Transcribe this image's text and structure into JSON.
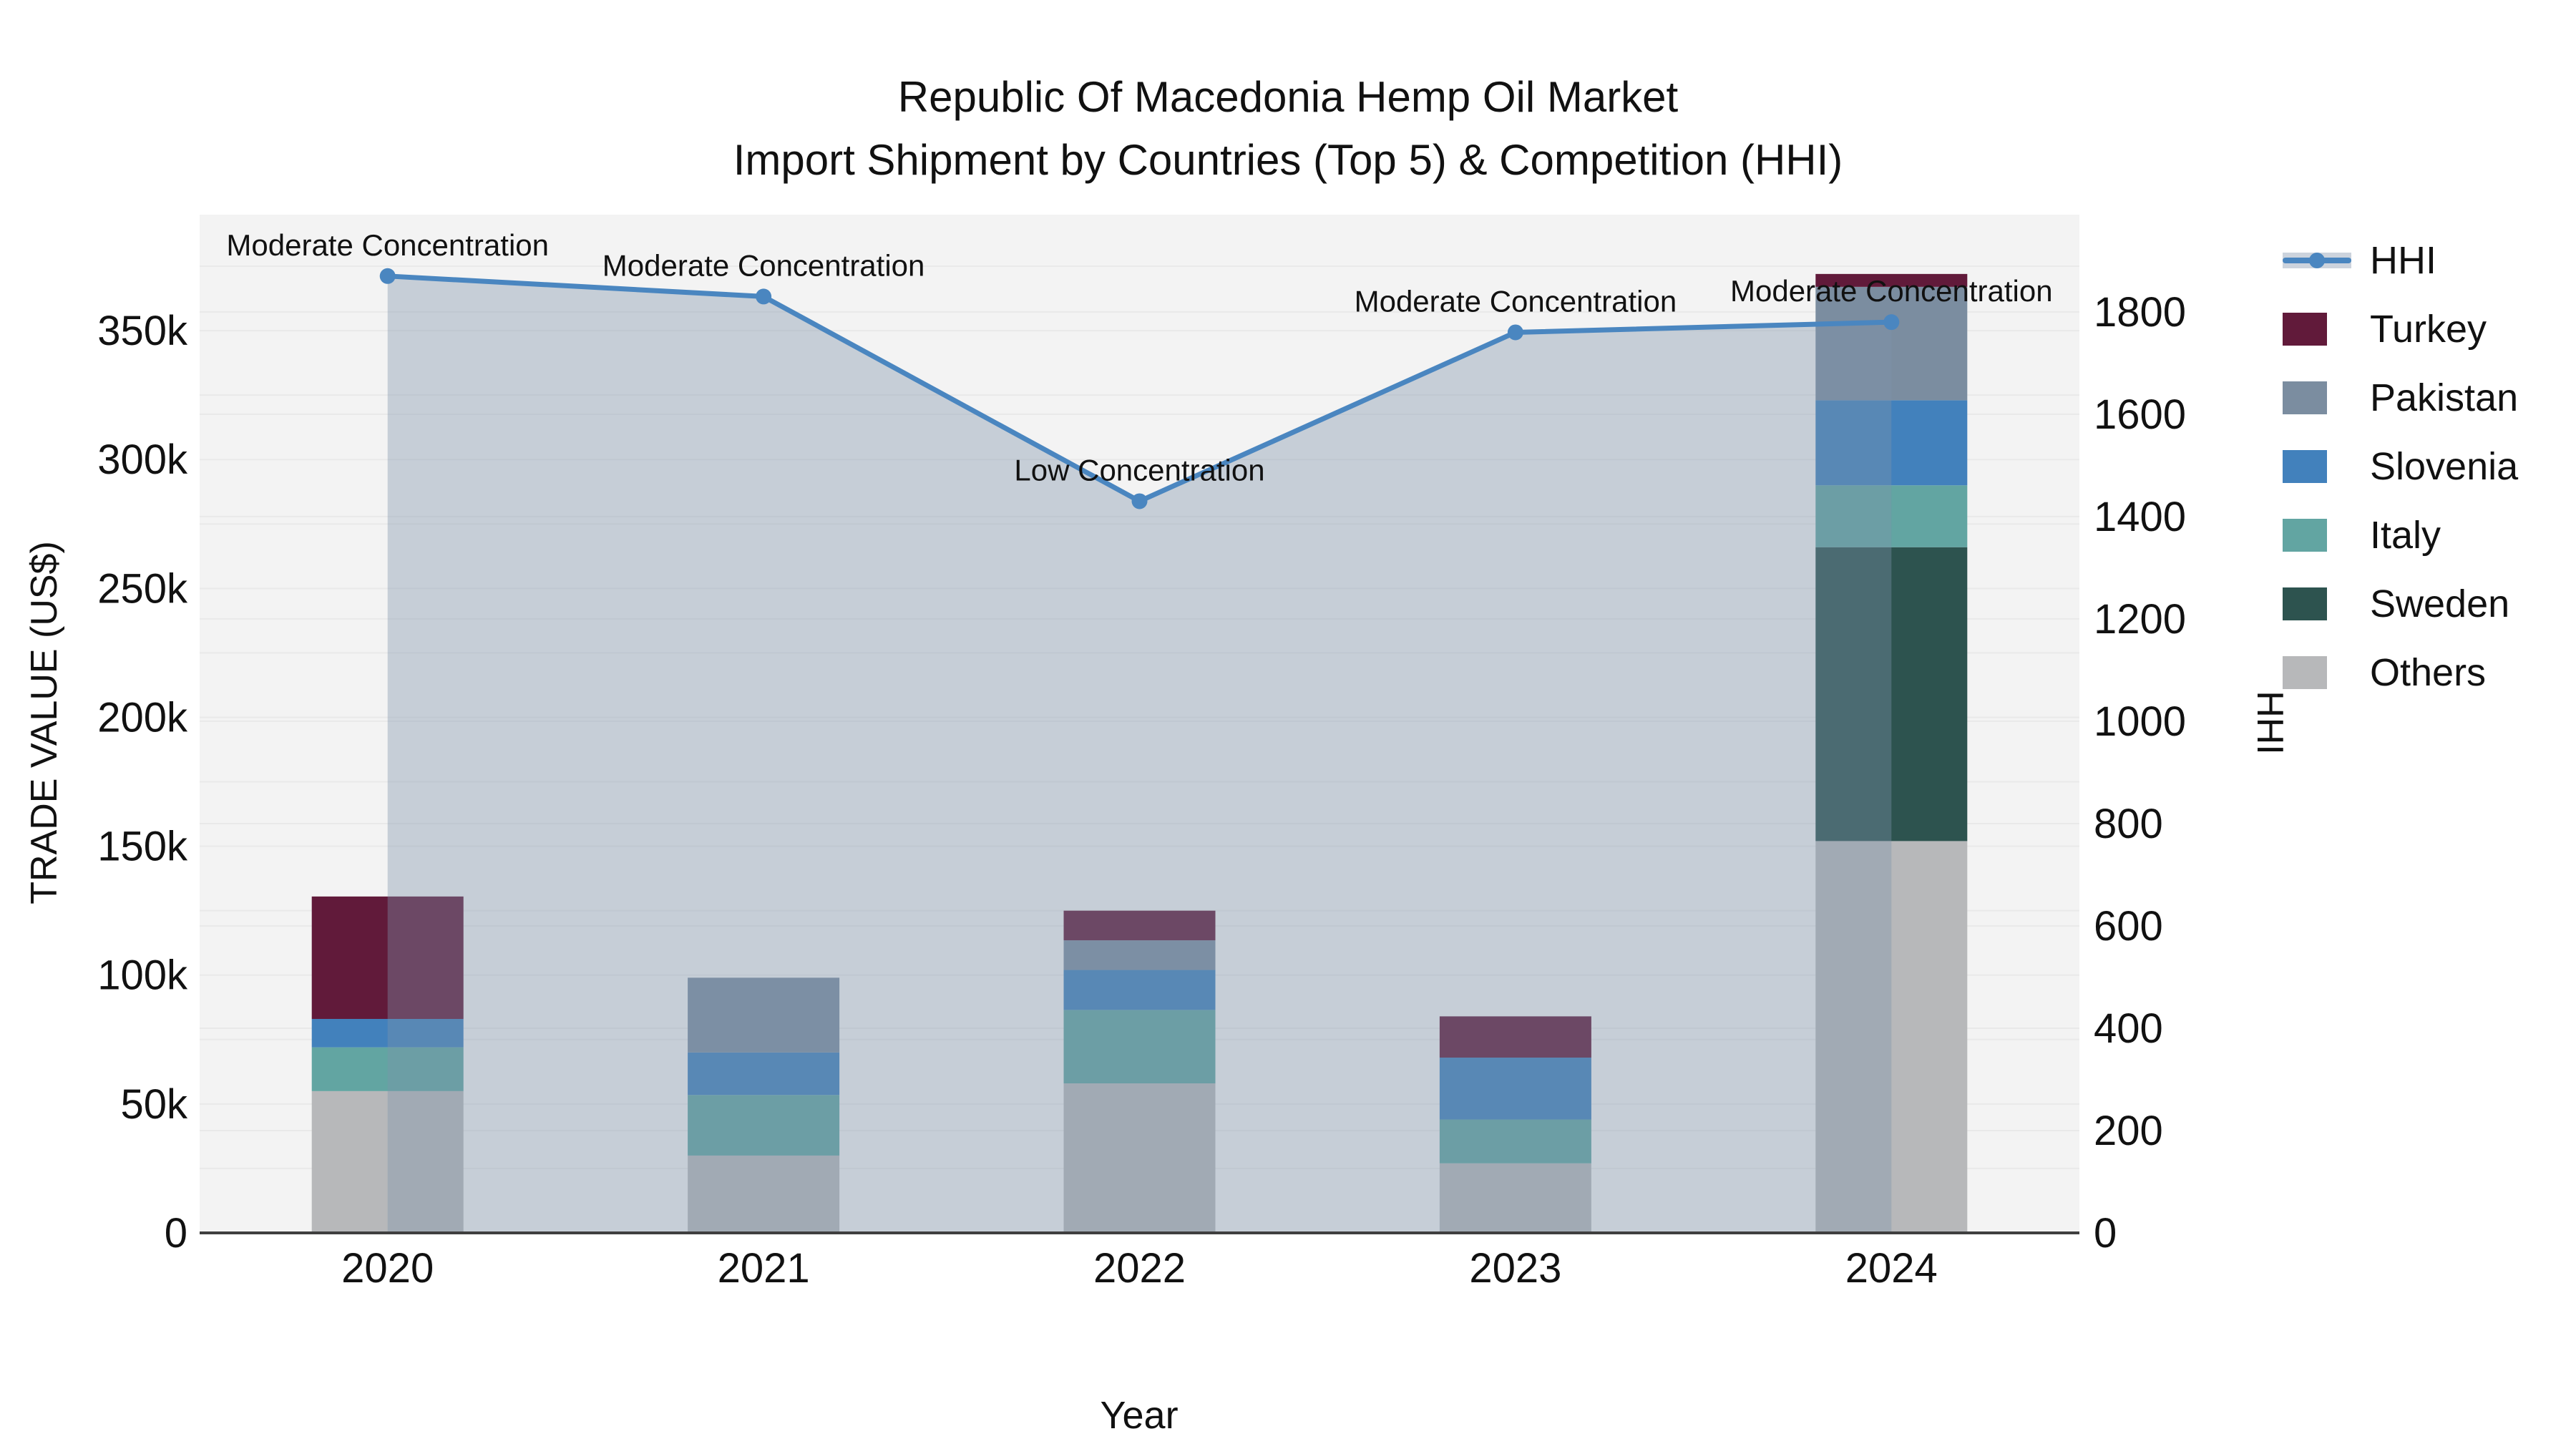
{
  "figure": {
    "title_line1": "Republic Of Macedonia Hemp Oil Market",
    "title_line2": "Import Shipment by Countries (Top 5) & Competition (HHI)"
  },
  "chart_data": {
    "type": "bar",
    "subtype": "stacked-bars-with-line-overlay",
    "categories": [
      "2020",
      "2021",
      "2022",
      "2023",
      "2024"
    ],
    "series": [
      {
        "name": "Turkey",
        "color": "#611a3a",
        "values": [
          47500,
          0,
          11500,
          16000,
          5000
        ]
      },
      {
        "name": "Pakistan",
        "color": "#7b8da0",
        "values": [
          0,
          29000,
          11500,
          0,
          44000
        ]
      },
      {
        "name": "Slovenia",
        "color": "#4281bc",
        "values": [
          11000,
          16500,
          15500,
          24000,
          33000
        ]
      },
      {
        "name": "Italy",
        "color": "#62a5a2",
        "values": [
          17000,
          23500,
          28500,
          17000,
          24000
        ]
      },
      {
        "name": "Sweden",
        "color": "#2d534f",
        "values": [
          0,
          0,
          0,
          0,
          114000
        ]
      },
      {
        "name": "Others",
        "color": "#b7b8ba",
        "values": [
          55000,
          30000,
          58000,
          27000,
          152000
        ]
      }
    ],
    "stack_order_bottom_to_top": [
      "Others",
      "Sweden",
      "Italy",
      "Slovenia",
      "Pakistan",
      "Turkey"
    ],
    "line_series": {
      "name": "HHI",
      "color": "#4a86c0",
      "values": [
        1870,
        1830,
        1430,
        1760,
        1780
      ]
    },
    "annotations": [
      {
        "category": "2020",
        "text": "Moderate Concentration"
      },
      {
        "category": "2021",
        "text": "Moderate Concentration"
      },
      {
        "category": "2022",
        "text": "Low Concentration"
      },
      {
        "category": "2023",
        "text": "Moderate Concentration"
      },
      {
        "category": "2024",
        "text": "Moderate Concentration"
      }
    ],
    "axes": {
      "x_label": "Year",
      "y_left": {
        "label": "TRADE VALUE (US$)",
        "max": 395000,
        "ticks": [
          {
            "value": 0,
            "label": "0"
          },
          {
            "value": 50000,
            "label": "50k"
          },
          {
            "value": 100000,
            "label": "100k"
          },
          {
            "value": 150000,
            "label": "150k"
          },
          {
            "value": 200000,
            "label": "200k"
          },
          {
            "value": 250000,
            "label": "250k"
          },
          {
            "value": 300000,
            "label": "300k"
          },
          {
            "value": 350000,
            "label": "350k"
          }
        ]
      },
      "y_right": {
        "label": "HHI",
        "max": 1990,
        "ticks": [
          {
            "value": 0,
            "label": "0"
          },
          {
            "value": 200,
            "label": "200"
          },
          {
            "value": 400,
            "label": "400"
          },
          {
            "value": 600,
            "label": "600"
          },
          {
            "value": 800,
            "label": "800"
          },
          {
            "value": 1000,
            "label": "1000"
          },
          {
            "value": 1200,
            "label": "1200"
          },
          {
            "value": 1400,
            "label": "1400"
          },
          {
            "value": 1600,
            "label": "1600"
          },
          {
            "value": 1800,
            "label": "1800"
          }
        ]
      }
    },
    "legend_order": [
      "HHI",
      "Turkey",
      "Pakistan",
      "Slovenia",
      "Italy",
      "Sweden",
      "Others"
    ],
    "colors": {
      "area_fill": "rgba(126,146,172,0.38)",
      "plot_bg": "#f3f3f3",
      "gridline": "#e9e9e9",
      "axis_line": "#3f3f3f",
      "text": "#111111"
    }
  }
}
